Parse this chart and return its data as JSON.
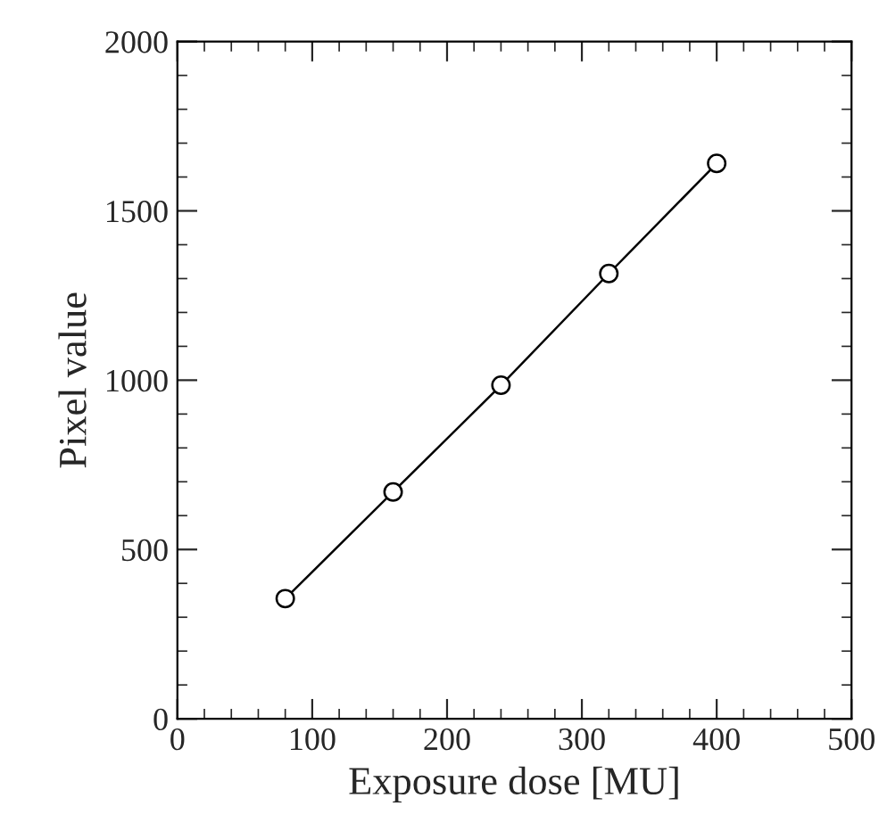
{
  "chart_data": {
    "type": "line",
    "xlabel": "Exposure dose [MU]",
    "ylabel": "Pixel value",
    "x": [
      80,
      160,
      240,
      320,
      400
    ],
    "series": [
      {
        "color": "#000000",
        "values": [
          355,
          670,
          985,
          1315,
          1640
        ]
      }
    ],
    "xlim": [
      0,
      500
    ],
    "xticks": [
      0,
      100,
      200,
      300,
      400,
      500
    ],
    "ylim": [
      0,
      2000
    ],
    "yticks": [
      0,
      500,
      1000,
      1500,
      2000
    ],
    "marker": "circle",
    "line_style": "solid",
    "grid": false,
    "legend": false
  }
}
